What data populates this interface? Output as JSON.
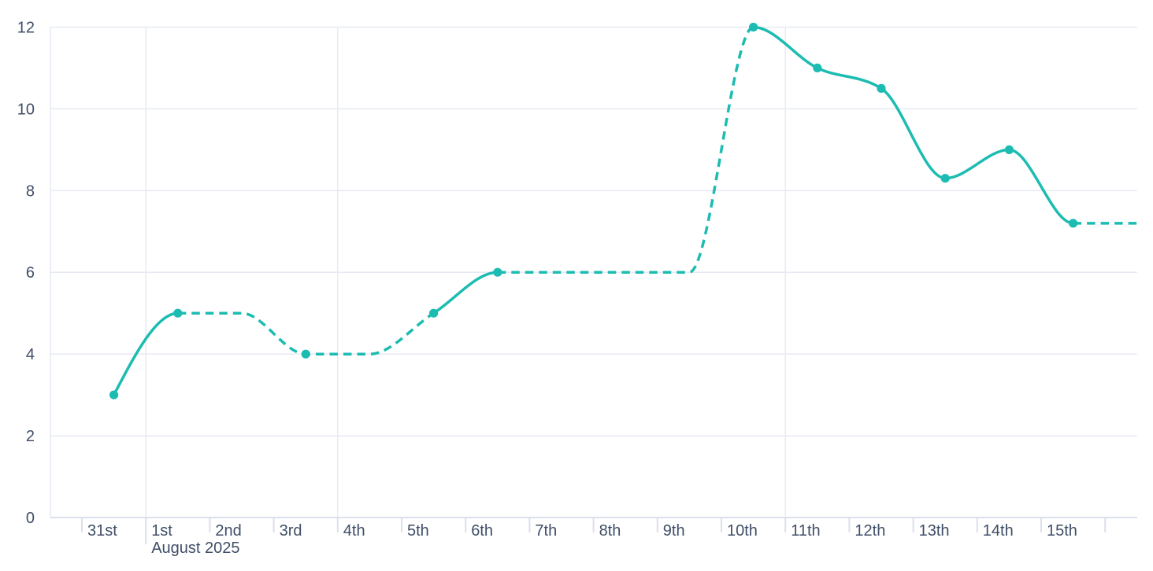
{
  "chart_data": {
    "type": "line",
    "title": "",
    "x_axis": {
      "tick_labels": [
        "31st",
        "1st",
        "2nd",
        "3rd",
        "4th",
        "5th",
        "6th",
        "7th",
        "8th",
        "9th",
        "10th",
        "11th",
        "12th",
        "13th",
        "14th",
        "15th"
      ],
      "secondary_label": "August 2025",
      "secondary_label_anchor": "1st",
      "vertical_gridlines_at": [
        "1st",
        "4th",
        "11th"
      ]
    },
    "y_axis": {
      "tick_labels": [
        "0",
        "2",
        "4",
        "6",
        "8",
        "10",
        "12"
      ],
      "range": [
        0,
        12
      ]
    },
    "series": [
      {
        "name": "value-by-day",
        "interpolation": "monotone",
        "points": [
          {
            "day": "31st",
            "value": 3,
            "marker": true
          },
          {
            "day": "1st",
            "value": 5,
            "marker": true
          },
          {
            "day": "2nd",
            "value": 5,
            "marker": false
          },
          {
            "day": "3rd",
            "value": 4,
            "marker": true
          },
          {
            "day": "4th",
            "value": 4,
            "marker": false
          },
          {
            "day": "5th",
            "value": 5,
            "marker": true
          },
          {
            "day": "6th",
            "value": 6,
            "marker": true
          },
          {
            "day": "7th",
            "value": 6,
            "marker": false
          },
          {
            "day": "8th",
            "value": 6,
            "marker": false
          },
          {
            "day": "9th",
            "value": 6,
            "marker": false
          },
          {
            "day": "10th",
            "value": 12,
            "marker": true
          },
          {
            "day": "11th",
            "value": 11,
            "marker": true
          },
          {
            "day": "12th",
            "value": 10.5,
            "marker": true
          },
          {
            "day": "13th",
            "value": 8.3,
            "marker": true
          },
          {
            "day": "14th",
            "value": 9,
            "marker": true
          },
          {
            "day": "15th",
            "value": 7.2,
            "marker": true
          },
          {
            "day": "16th",
            "value": 7.2,
            "marker": false
          }
        ],
        "segments": [
          {
            "from": 0,
            "to": 1,
            "style": "solid"
          },
          {
            "from": 1,
            "to": 5,
            "style": "dashed"
          },
          {
            "from": 5,
            "to": 6,
            "style": "solid"
          },
          {
            "from": 6,
            "to": 10,
            "style": "dashed"
          },
          {
            "from": 10,
            "to": 15,
            "style": "solid"
          },
          {
            "from": 15,
            "to": 16,
            "style": "dashed"
          }
        ]
      }
    ],
    "legend": false,
    "grid": true
  },
  "colors": {
    "series_line": "#1cbcb2",
    "gridline": "#e7eaf3",
    "axis_line": "#dcdfec",
    "tick": "#dcdfec",
    "axis_label": "#3f4e67",
    "background": "#ffffff"
  }
}
